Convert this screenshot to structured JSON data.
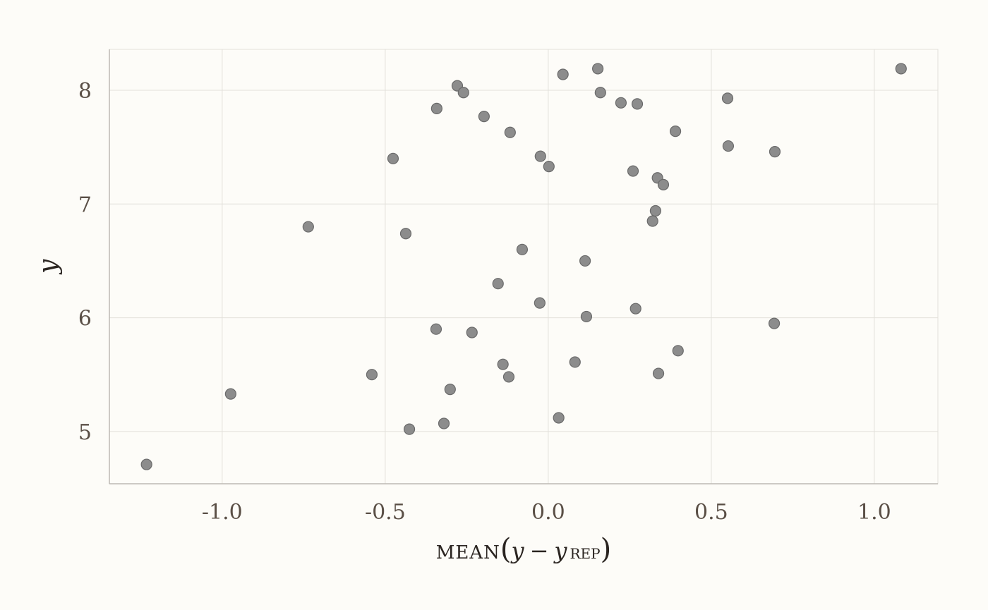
{
  "chart_data": {
    "type": "scatter",
    "title": "",
    "xlabel": {
      "func": "MEAN",
      "var": "y",
      "minus": "−",
      "rep_var": "y",
      "rep_sub": "REP"
    },
    "ylabel": "y",
    "xlim": [
      -1.346,
      1.195
    ],
    "ylim": [
      4.54,
      8.36
    ],
    "xticks": [
      -1.0,
      -0.5,
      0.0,
      0.5,
      1.0
    ],
    "xtick_labels": [
      "-1.0",
      "-0.5",
      "0.0",
      "0.5",
      "1.0"
    ],
    "yticks": [
      5,
      6,
      7,
      8
    ],
    "ytick_labels": [
      "5",
      "6",
      "7",
      "8"
    ],
    "grid": true,
    "colors": {
      "point_fill": "#8c8c8c",
      "point_stroke": "#6a6a6a",
      "grid": "#e2e0da",
      "axis": "#bdbab4",
      "background": "#fdfcf8"
    },
    "points": [
      [
        -1.232,
        4.71
      ],
      [
        -0.974,
        5.33
      ],
      [
        -0.736,
        6.8
      ],
      [
        -0.541,
        5.5
      ],
      [
        -0.476,
        7.4
      ],
      [
        -0.437,
        6.74
      ],
      [
        -0.426,
        5.02
      ],
      [
        -0.342,
        7.84
      ],
      [
        -0.344,
        5.9
      ],
      [
        -0.32,
        5.07
      ],
      [
        -0.301,
        5.37
      ],
      [
        -0.279,
        8.04
      ],
      [
        -0.26,
        7.98
      ],
      [
        -0.234,
        5.87
      ],
      [
        -0.197,
        7.77
      ],
      [
        -0.154,
        6.3
      ],
      [
        -0.139,
        5.59
      ],
      [
        -0.121,
        5.48
      ],
      [
        -0.117,
        7.63
      ],
      [
        -0.08,
        6.6
      ],
      [
        -0.024,
        7.42
      ],
      [
        -0.026,
        6.13
      ],
      [
        0.002,
        7.33
      ],
      [
        0.032,
        5.12
      ],
      [
        0.045,
        8.14
      ],
      [
        0.082,
        5.61
      ],
      [
        0.113,
        6.5
      ],
      [
        0.117,
        6.01
      ],
      [
        0.152,
        8.19
      ],
      [
        0.16,
        7.98
      ],
      [
        0.223,
        7.89
      ],
      [
        0.26,
        7.29
      ],
      [
        0.273,
        7.88
      ],
      [
        0.268,
        6.08
      ],
      [
        0.32,
        6.85
      ],
      [
        0.329,
        6.94
      ],
      [
        0.335,
        7.23
      ],
      [
        0.338,
        5.51
      ],
      [
        0.353,
        7.17
      ],
      [
        0.39,
        7.64
      ],
      [
        0.398,
        5.71
      ],
      [
        0.55,
        7.93
      ],
      [
        0.552,
        7.51
      ],
      [
        0.693,
        5.95
      ],
      [
        0.695,
        7.46
      ],
      [
        1.082,
        8.19
      ]
    ]
  }
}
